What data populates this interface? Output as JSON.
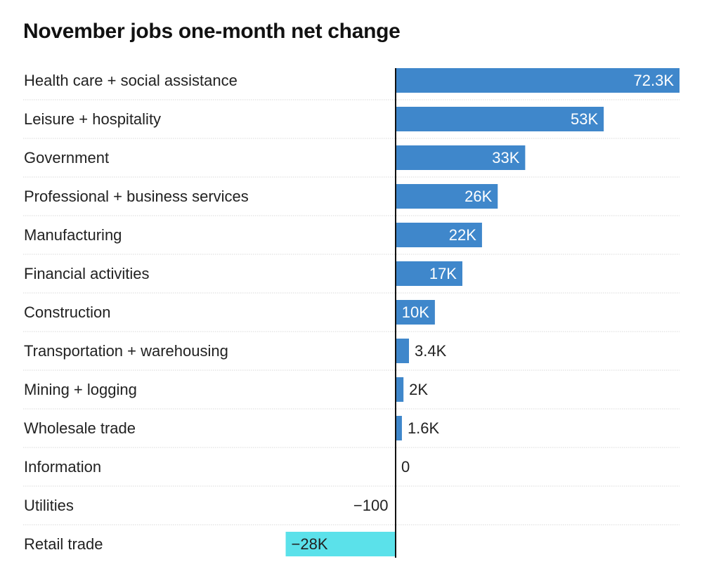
{
  "chart_data": {
    "type": "bar",
    "orientation": "horizontal",
    "title": "November jobs one-month net change",
    "xlabel": "",
    "ylabel": "",
    "grid": false,
    "categories": [
      "Health care + social assistance",
      "Leisure + hospitality",
      "Government",
      "Professional + business services",
      "Manufacturing",
      "Financial activities",
      "Construction",
      "Transportation + warehousing",
      "Mining + logging",
      "Wholesale trade",
      "Information",
      "Utilities",
      "Retail trade"
    ],
    "values": [
      72300,
      53000,
      33000,
      26000,
      22000,
      17000,
      10000,
      3400,
      2000,
      1600,
      0,
      -100,
      -28000
    ],
    "value_labels": [
      "72.3K",
      "53K",
      "33K",
      "26K",
      "22K",
      "17K",
      "10K",
      "3.4K",
      "2K",
      "1.6K",
      "0",
      "−100",
      "−28K"
    ],
    "xlim": [
      -28000,
      72300
    ],
    "colors": {
      "positive": "#3f87cb",
      "negative": "#5be1ea",
      "axis": "#111111",
      "separator": "#d9d9d9",
      "label_inside": "#ffffff",
      "label_outside": "#222222"
    }
  }
}
